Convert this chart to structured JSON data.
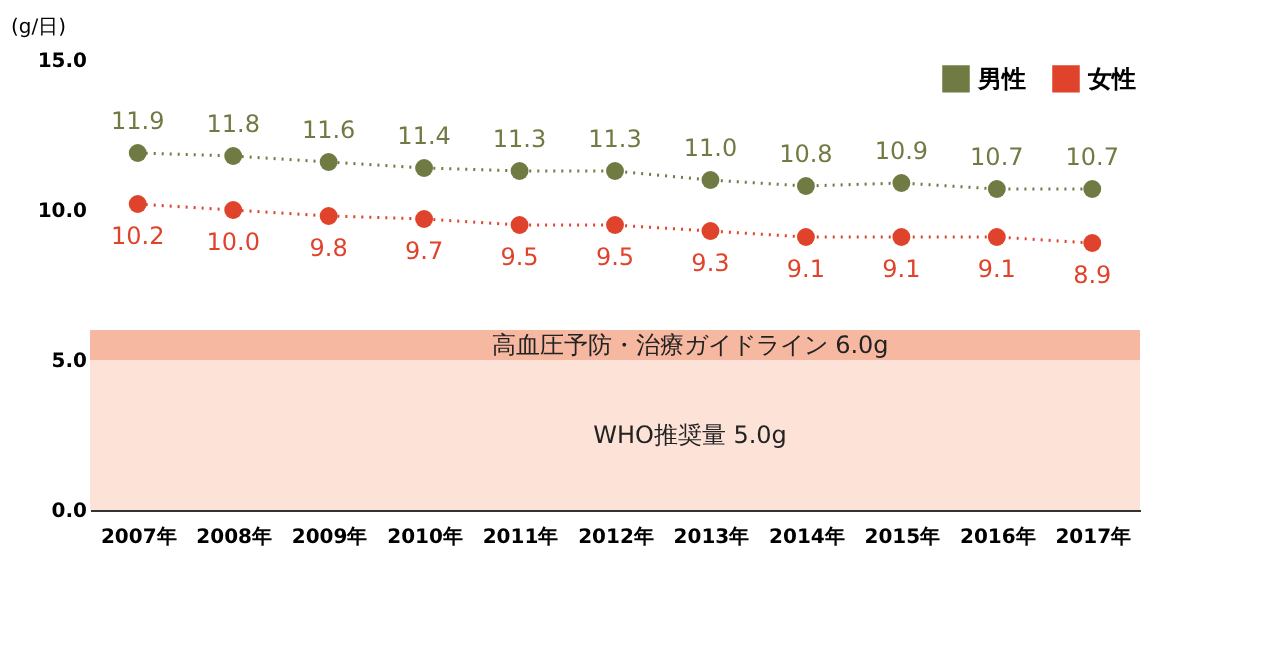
{
  "chart_data": {
    "type": "line",
    "ylabel": "(g/日)",
    "categories": [
      "2007年",
      "2008年",
      "2009年",
      "2010年",
      "2011年",
      "2012年",
      "2013年",
      "2014年",
      "2015年",
      "2016年",
      "2017年"
    ],
    "series": [
      {
        "name": "男性",
        "color": "#6f7b43",
        "values": [
          11.9,
          11.8,
          11.6,
          11.4,
          11.3,
          11.3,
          11.0,
          10.8,
          10.9,
          10.7,
          10.7
        ],
        "value_labels": [
          "11.9",
          "11.8",
          "11.6",
          "11.4",
          "11.3",
          "11.3",
          "11.0",
          "10.8",
          "10.9",
          "10.7",
          "10.7"
        ]
      },
      {
        "name": "女性",
        "color": "#e0432b",
        "values": [
          10.2,
          10.0,
          9.8,
          9.7,
          9.5,
          9.5,
          9.3,
          9.1,
          9.1,
          9.1,
          8.9
        ],
        "value_labels": [
          "10.2",
          "10.0",
          "9.8",
          "9.7",
          "9.5",
          "9.5",
          "9.3",
          "9.1",
          "9.1",
          "9.1",
          "8.9"
        ]
      }
    ],
    "ylim": [
      0,
      15
    ],
    "yticks": [
      {
        "value": 0,
        "label": "0.0"
      },
      {
        "value": 5,
        "label": "5.0"
      },
      {
        "value": 10,
        "label": "10.0"
      },
      {
        "value": 15,
        "label": "15.0"
      }
    ],
    "bands": [
      {
        "axis": "y",
        "from": 0,
        "to": 5,
        "label": "WHO推奨量 5.0g",
        "color": "#fde2d8"
      },
      {
        "axis": "y",
        "from": 5,
        "to": 6,
        "label": "高血圧予防・治療ガイドライン 6.0g",
        "color": "#f7b8a2"
      }
    ],
    "marker": "circle",
    "line_style": "dotted",
    "grid": false,
    "legend": "top right"
  }
}
